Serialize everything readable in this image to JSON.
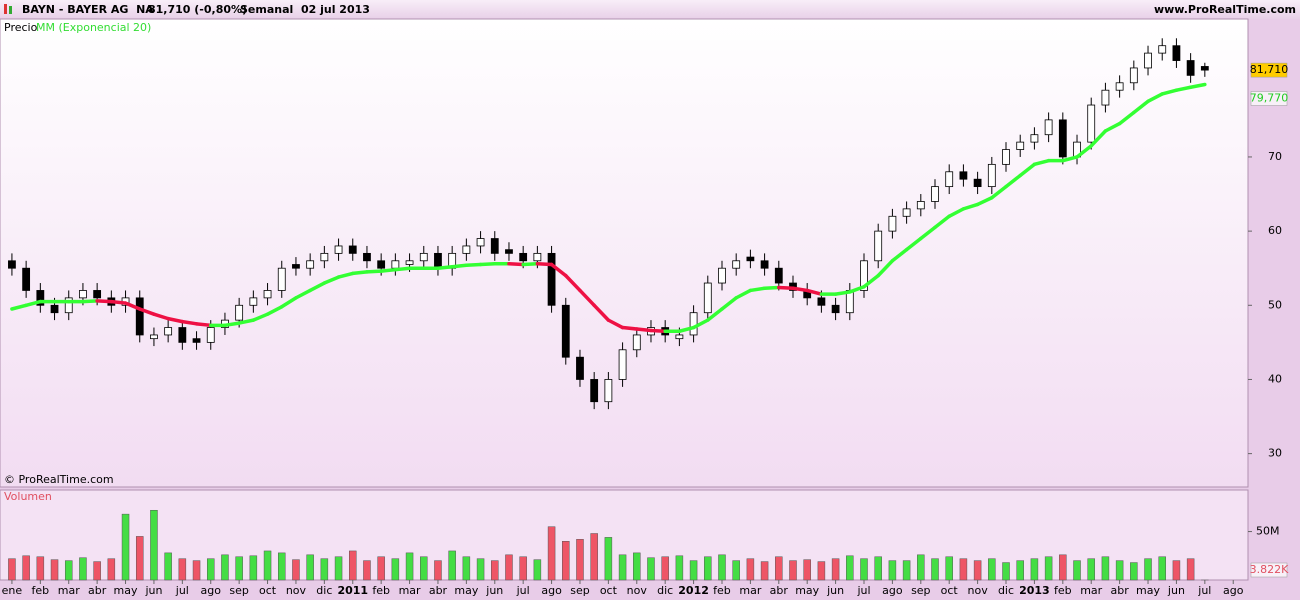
{
  "header": {
    "symbol": "BAYN - BAYER AG  NA",
    "last": "81,710 (-0,80%)",
    "period": "Semanal  02 jul 2013",
    "site": "www.ProRealTime.com"
  },
  "chart_data": {
    "type": "candlestick",
    "price_label": "Precio",
    "ema_label": "MM (Exponencial 20)",
    "copyright": "© ProRealTime.com",
    "x": [
      0,
      0.5,
      1,
      1.5,
      2,
      2.5,
      3,
      3.5,
      4,
      4.5,
      5,
      5.5,
      6,
      6.5,
      7,
      7.5,
      8,
      8.5,
      9,
      9.5,
      10,
      10.5,
      11,
      11.5,
      12,
      12.5,
      13,
      13.5,
      14,
      14.5,
      15,
      15.5,
      16,
      16.5,
      17,
      17.5,
      18,
      18.5,
      19,
      19.5,
      20,
      20.5,
      21,
      21.5,
      22,
      22.5,
      23,
      23.5,
      24,
      24.5,
      25,
      25.5,
      26,
      26.5,
      27,
      27.5,
      28,
      28.5,
      29,
      29.5,
      30,
      30.5,
      31,
      31.5,
      32,
      32.5,
      33,
      33.5,
      34,
      34.5,
      35,
      35.5,
      36,
      36.5,
      37,
      37.5,
      38,
      38.5,
      39,
      39.5,
      40,
      40.5,
      41,
      41.5,
      42
    ],
    "open": [
      56,
      55,
      52,
      50,
      49,
      51,
      52,
      51,
      50,
      51,
      45.5,
      46,
      47,
      45.5,
      45,
      47,
      48,
      50,
      51,
      52,
      55.5,
      55,
      56,
      57,
      58,
      57,
      56,
      55,
      55.5,
      56,
      57,
      55,
      57,
      58,
      59,
      57.5,
      57,
      56,
      57,
      50,
      43,
      40,
      37,
      40,
      44,
      46,
      47,
      45.5,
      46,
      49,
      53,
      55,
      56.5,
      56,
      55,
      53,
      52,
      51,
      50,
      49,
      52,
      56,
      60,
      62,
      63,
      64,
      66,
      68,
      67,
      66,
      69,
      71,
      72,
      73,
      75,
      70,
      72,
      77,
      79,
      80,
      82,
      84,
      85,
      83,
      82.2
    ],
    "high": [
      57,
      56,
      53,
      51,
      52,
      53,
      53,
      52,
      52,
      52,
      47,
      48,
      48,
      46.5,
      48,
      49,
      51,
      52,
      53,
      56,
      56.5,
      57,
      58,
      59,
      59,
      58,
      57,
      57,
      57,
      58,
      58,
      58,
      59,
      60,
      60,
      58.5,
      58,
      58,
      58,
      51,
      44,
      41,
      41,
      45,
      47,
      48,
      48,
      47,
      50,
      54,
      56,
      57,
      57.5,
      57,
      56,
      54,
      53,
      52,
      51,
      53,
      57,
      61,
      63,
      64,
      65,
      67,
      69,
      69,
      68,
      70,
      72,
      73,
      74,
      76,
      76,
      73,
      78,
      80,
      81,
      83,
      85,
      86,
      86,
      84,
      82.7
    ],
    "low": [
      54,
      51,
      49,
      48,
      48,
      50,
      50,
      49,
      49,
      45,
      44.5,
      45,
      44,
      44,
      44,
      46,
      47,
      49,
      50,
      51,
      54,
      54,
      55,
      56,
      56,
      55,
      54,
      54,
      54.5,
      55,
      54,
      54,
      56,
      57,
      56,
      56,
      55,
      55,
      49,
      42,
      39,
      36,
      36,
      39,
      43,
      45,
      45,
      44.5,
      45,
      48,
      52,
      54,
      55,
      54,
      52,
      51,
      50,
      49,
      48,
      48,
      51,
      55,
      59,
      61,
      62,
      63,
      65,
      66,
      65,
      65,
      68,
      70,
      71,
      72,
      69,
      69,
      71,
      76,
      78,
      79,
      81,
      83,
      82,
      80,
      80.8
    ],
    "close": [
      55,
      52,
      50,
      49,
      51,
      52,
      51,
      50,
      51,
      46,
      46,
      47,
      45,
      45,
      47,
      48,
      50,
      51,
      52,
      55,
      55,
      56,
      57,
      58,
      57,
      56,
      55,
      56,
      56,
      57,
      55,
      57,
      58,
      59,
      57,
      57,
      56,
      57,
      50,
      43,
      40,
      37,
      40,
      44,
      46,
      47,
      46,
      46,
      49,
      53,
      55,
      56,
      56,
      55,
      53,
      52,
      51,
      50,
      49,
      52,
      56,
      60,
      62,
      63,
      64,
      66,
      68,
      67,
      66,
      69,
      71,
      72,
      73,
      75,
      70,
      72,
      77,
      79,
      80,
      82,
      84,
      85,
      83,
      81,
      81.71
    ],
    "up_color": "#ffffff",
    "down_color": "#000000",
    "ema": {
      "values": [
        49.5,
        50,
        50.5,
        50.5,
        50.5,
        50.5,
        50.6,
        50.5,
        50.3,
        49.5,
        48.8,
        48.2,
        47.8,
        47.5,
        47.3,
        47.3,
        47.6,
        48,
        48.8,
        49.8,
        51,
        52,
        53,
        53.8,
        54.3,
        54.5,
        54.6,
        54.8,
        55,
        55,
        55,
        55.2,
        55.4,
        55.5,
        55.6,
        55.6,
        55.5,
        55.6,
        55.5,
        54,
        52,
        50,
        48,
        47,
        46.8,
        46.6,
        46.5,
        46.5,
        47,
        48,
        49.5,
        51,
        52,
        52.3,
        52.4,
        52.3,
        52,
        51.5,
        51.5,
        51.8,
        52.5,
        54,
        56,
        57.5,
        59,
        60.5,
        62,
        63,
        63.6,
        64.5,
        66,
        67.5,
        69,
        69.5,
        69.5,
        70,
        71.5,
        73.5,
        74.5,
        76,
        77.5,
        78.5,
        79,
        79.4,
        79.77
      ],
      "up_color": "#33ff33",
      "down_color": "#ee1144"
    },
    "price_tag": {
      "value": 81.71,
      "label": "81,710"
    },
    "ema_tag": {
      "value": 79.77,
      "label": "79,770"
    },
    "ylim": [
      25.5,
      88.6
    ],
    "yticks": [
      30,
      40,
      50,
      60,
      70
    ],
    "xlim": [
      -0.42,
      43.52
    ],
    "xticks": [
      {
        "value": 0,
        "label": "ene"
      },
      {
        "value": 1,
        "label": "feb"
      },
      {
        "value": 2,
        "label": "mar"
      },
      {
        "value": 3,
        "label": "abr"
      },
      {
        "value": 4,
        "label": "may"
      },
      {
        "value": 5,
        "label": "jun"
      },
      {
        "value": 6,
        "label": "jul"
      },
      {
        "value": 7,
        "label": "ago"
      },
      {
        "value": 8,
        "label": "sep"
      },
      {
        "value": 9,
        "label": "oct"
      },
      {
        "value": 10,
        "label": "nov"
      },
      {
        "value": 11,
        "label": "dic"
      },
      {
        "value": 12,
        "label": "2011"
      },
      {
        "value": 13,
        "label": "feb"
      },
      {
        "value": 14,
        "label": "mar"
      },
      {
        "value": 15,
        "label": "abr"
      },
      {
        "value": 16,
        "label": "may"
      },
      {
        "value": 17,
        "label": "jun"
      },
      {
        "value": 18,
        "label": "jul"
      },
      {
        "value": 19,
        "label": "ago"
      },
      {
        "value": 20,
        "label": "sep"
      },
      {
        "value": 21,
        "label": "oct"
      },
      {
        "value": 22,
        "label": "nov"
      },
      {
        "value": 23,
        "label": "dic"
      },
      {
        "value": 24,
        "label": "2012"
      },
      {
        "value": 25,
        "label": "feb"
      },
      {
        "value": 26,
        "label": "mar"
      },
      {
        "value": 27,
        "label": "abr"
      },
      {
        "value": 28,
        "label": "may"
      },
      {
        "value": 29,
        "label": "jun"
      },
      {
        "value": 30,
        "label": "jul"
      },
      {
        "value": 31,
        "label": "ago"
      },
      {
        "value": 32,
        "label": "sep"
      },
      {
        "value": 33,
        "label": "oct"
      },
      {
        "value": 34,
        "label": "nov"
      },
      {
        "value": 35,
        "label": "dic"
      },
      {
        "value": 36,
        "label": "2013"
      },
      {
        "value": 37,
        "label": "feb"
      },
      {
        "value": 38,
        "label": "mar"
      },
      {
        "value": 39,
        "label": "abr"
      },
      {
        "value": 40,
        "label": "may"
      },
      {
        "value": 41,
        "label": "jun"
      },
      {
        "value": 42,
        "label": "jul"
      },
      {
        "value": 43,
        "label": "ago"
      }
    ],
    "volume": {
      "name": "Volumen",
      "up_color": "#44dd44",
      "down_color": "#ee5566",
      "values": [
        22,
        25,
        24,
        21,
        20,
        23,
        19,
        22,
        68,
        45,
        72,
        28,
        22,
        20,
        22,
        26,
        24,
        25,
        30,
        28,
        21,
        26,
        22,
        24,
        30,
        20,
        24,
        22,
        28,
        24,
        20,
        30,
        24,
        22,
        20,
        26,
        24,
        21,
        55,
        40,
        42,
        48,
        44,
        26,
        28,
        23,
        24,
        25,
        20,
        24,
        26,
        20,
        22,
        19,
        24,
        20,
        21,
        19,
        22,
        25,
        22,
        24,
        20,
        20,
        26,
        22,
        24,
        22,
        20,
        22,
        18,
        20,
        22,
        24,
        26,
        20,
        22,
        24,
        20,
        18,
        22,
        24,
        20,
        22,
        0.003822
      ],
      "ylim": [
        0,
        92.9
      ],
      "yticks": [
        {
          "value": 50,
          "label": "50M"
        }
      ],
      "tag": {
        "value": 0.003822,
        "label": "3.822K"
      }
    }
  }
}
